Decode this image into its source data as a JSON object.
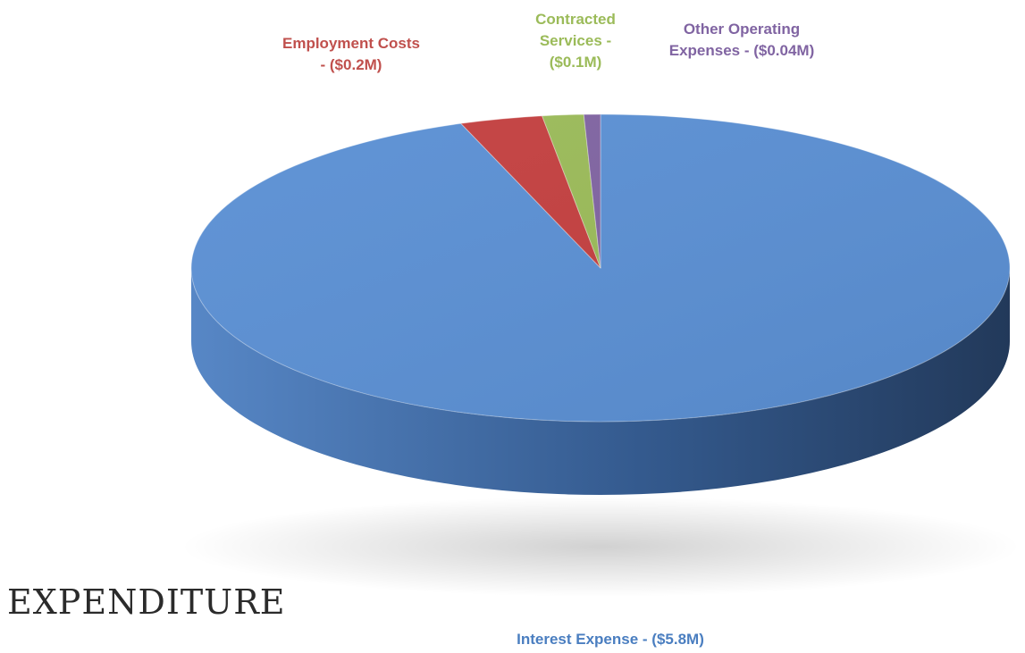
{
  "heading": "EXPENDITURE",
  "chart_data": {
    "type": "pie",
    "style": "3d",
    "title": "",
    "unit": "$M",
    "slices": [
      {
        "name": "Interest Expense",
        "value": 5.8,
        "label": "Interest Expense - ($5.8M)",
        "label_lines": [
          "Interest Expense - ($5.8M)"
        ],
        "color": "#5b90d4",
        "label_color": "#4a7ec0"
      },
      {
        "name": "Employment Costs",
        "value": 0.2,
        "label": "Employment Costs - ($0.2M)",
        "label_lines": [
          "Employment Costs",
          "- ($0.2M)"
        ],
        "color": "#c44040",
        "label_color": "#c0504d"
      },
      {
        "name": "Contracted Services",
        "value": 0.1,
        "label": "Contracted Services - ($0.1M)",
        "label_lines": [
          "Contracted",
          "Services -",
          "($0.1M)"
        ],
        "color": "#9bbb59",
        "label_color": "#9bbb59"
      },
      {
        "name": "Other Operating Expenses",
        "value": 0.04,
        "label": "Other Operating Expenses - ($0.04M)",
        "label_lines": [
          "Other Operating",
          "Expenses - ($0.04M)"
        ],
        "color": "#8064a2",
        "label_color": "#8064a2"
      }
    ]
  }
}
